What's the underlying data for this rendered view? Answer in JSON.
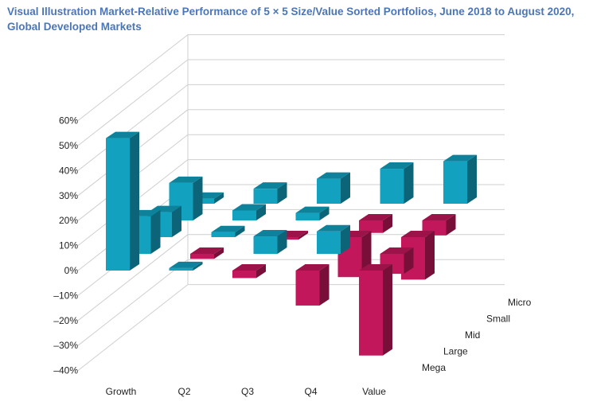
{
  "colors": {
    "positive": "#12a2c0",
    "negative": "#c2185b",
    "grid": "#cfcfcf"
  },
  "chart_data": {
    "type": "bar",
    "chart_style": "3d-grid",
    "title": "Visual Illustration Market-Relative Performance of 5 × 5 Size/Value Sorted Portfolios, June 2018 to August 2020, Global Developed Markets",
    "x_categories": [
      "Growth",
      "Q2",
      "Q3",
      "Q4",
      "Value"
    ],
    "depth_categories": [
      "Mega",
      "Large",
      "Mid",
      "Small",
      "Micro"
    ],
    "ytick_labels": [
      "60%",
      "50%",
      "40%",
      "30%",
      "20%",
      "10%",
      "0%",
      "–10%",
      "–20%",
      "–30%",
      "–40%"
    ],
    "ylim": [
      -40,
      60
    ],
    "y_unit": "%",
    "series": [
      {
        "name": "Mega",
        "values": [
          53,
          1,
          -3,
          -14,
          -34
        ]
      },
      {
        "name": "Large",
        "values": [
          15,
          -2,
          7,
          9,
          -8
        ]
      },
      {
        "name": "Mid",
        "values": [
          10,
          2,
          -1,
          -16,
          -17
        ]
      },
      {
        "name": "Small",
        "values": [
          15,
          4,
          3,
          -5,
          -6
        ]
      },
      {
        "name": "Micro",
        "values": [
          2,
          6,
          10,
          14,
          17
        ]
      }
    ]
  }
}
